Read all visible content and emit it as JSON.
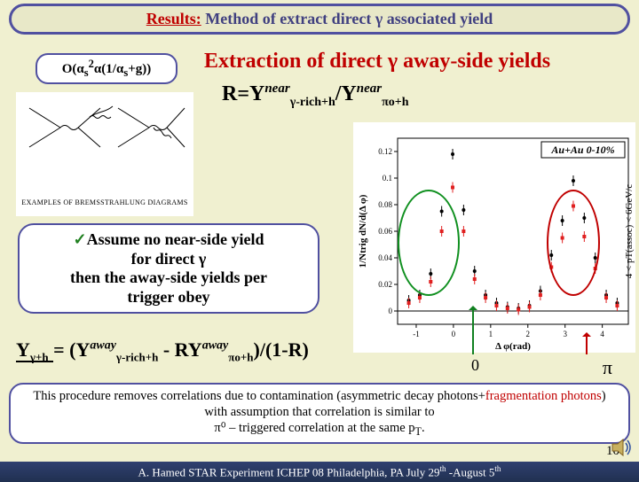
{
  "title": {
    "results_label": "Results:",
    "rest": " Method of extract direct γ associated yield"
  },
  "order_box": "O(αs²α(1/αs+g))",
  "extraction_title": "Extraction of direct γ away-side yields",
  "ratio": {
    "lhs": "R=Y",
    "sub1": "γ-rich+h",
    "sup": "near",
    "mid": "/Y",
    "sub2": "πo+h"
  },
  "diagram_caption": "EXAMPLES OF BREMSSTRAHLUNG DIAGRAMS",
  "assume": {
    "line1_pre": "Assume",
    "line1_rest": " no near-side yield",
    "line2": "for direct γ",
    "line3": "then the away-side yields per",
    "line4": "trigger obey"
  },
  "yield_eq": {
    "Y1": "Y",
    "sub1": "γ+h",
    "eq": " = (Y",
    "sub2": "γ-rich+h",
    "sup": "away",
    "minus": " - RY",
    "sub3": "πo+h",
    "close": ")/(1-R)"
  },
  "chart": {
    "inset_label": "Au+Au 0-10%",
    "ylabel_top": "4 < pT(assoc) < 6GeV/c",
    "ylabel_left": "1/Ntrig dN/d(Δ φ)",
    "xlabel": "Δ φ(rad)",
    "series": [
      {
        "color": "#000000",
        "marker": "circle",
        "y": [
          0.008,
          0.012,
          0.028,
          0.075,
          0.118,
          0.076,
          0.03,
          0.012,
          0.006,
          0.003,
          0.002,
          0.004,
          0.015,
          0.042,
          0.068,
          0.098,
          0.07,
          0.04,
          0.012,
          0.006
        ]
      },
      {
        "color": "#e02020",
        "marker": "square",
        "y": [
          0.006,
          0.01,
          0.022,
          0.06,
          0.093,
          0.06,
          0.024,
          0.01,
          0.004,
          0.002,
          0.001,
          0.003,
          0.012,
          0.033,
          0.055,
          0.079,
          0.056,
          0.032,
          0.01,
          0.004
        ]
      }
    ],
    "xrange": [
      -1.5,
      4.7
    ],
    "yrange": [
      -0.01,
      0.13
    ],
    "xticks": [
      -1,
      0,
      1,
      2,
      3,
      4
    ],
    "yticks": [
      0,
      0.02,
      0.04,
      0.06,
      0.08,
      0.1,
      0.12
    ],
    "ytick_labels": [
      "0",
      "0.02",
      "0.04",
      "0.06",
      "0.08",
      "0.1",
      "0.12"
    ],
    "bg": "#ffffff",
    "axis_color": "#000000",
    "marker_size": 4,
    "tick_fontsize": 9,
    "label_fontsize": 11,
    "inset_fontsize": 12
  },
  "zero": "0",
  "pi": "π",
  "explain": {
    "pre": "This procedure removes correlations due to contamination (asymmetric decay photons+",
    "frag": "fragmentation photons",
    "post1": ") with assumption that correlation is similar to",
    "line3": "π⁰ – triggered correlation at the same p",
    "pTsub": "T",
    "dot": "."
  },
  "pagenum": "10",
  "footer": {
    "text_pre": "A. Hamed STAR Experiment ICHEP 08 Philadelphia, PA July 29",
    "th1": "th",
    "mid": " -August 5",
    "th2": "th"
  },
  "colors": {
    "accent_border": "#5050a0",
    "bg": "#f0f0d0",
    "red": "#c00000",
    "green": "#109020",
    "footer_bg": "#284068"
  }
}
